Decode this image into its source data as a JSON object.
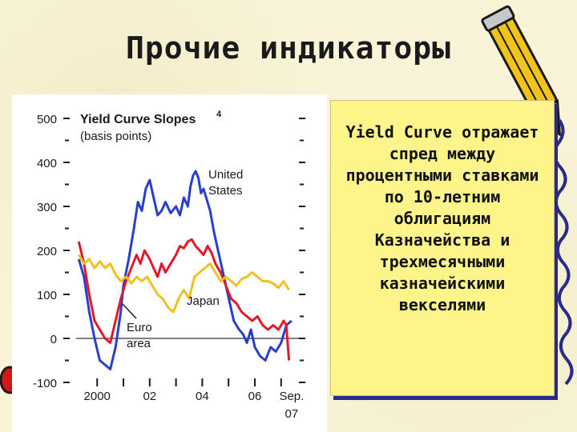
{
  "slide": {
    "title": "Прочие индикаторы",
    "note_text": "Yield Curve отражает спред между процентными ставками по 10-летним облигациям Казначейства и трехмесячными казначейскими векселями"
  },
  "colors": {
    "united_states": "#2a3fc8",
    "euro_area": "#e01a2a",
    "japan": "#f0c020",
    "note_bg": "#fdf58a"
  },
  "chart_data": {
    "type": "line",
    "title": "Yield Curve Slopes",
    "title_superscript": "4",
    "subtitle": "(basis points)",
    "ylim": [
      -100,
      500
    ],
    "y_ticks": [
      "500",
      "400",
      "300",
      "200",
      "100",
      "0",
      "-100"
    ],
    "x_ticks": [
      "2000",
      "02",
      "04",
      "06",
      "Sep.",
      "07"
    ],
    "xlim": [
      1999.2,
      2007.8
    ],
    "grid": false,
    "zero_line": true,
    "series": [
      {
        "name": "United States",
        "color": "#2a3fc8",
        "points": [
          [
            1999.3,
            180
          ],
          [
            1999.5,
            140
          ],
          [
            1999.7,
            60
          ],
          [
            1999.9,
            0
          ],
          [
            2000.1,
            -50
          ],
          [
            2000.3,
            -60
          ],
          [
            2000.5,
            -70
          ],
          [
            2000.7,
            -20
          ],
          [
            2000.9,
            60
          ],
          [
            2001.0,
            120
          ],
          [
            2001.2,
            180
          ],
          [
            2001.4,
            250
          ],
          [
            2001.55,
            310
          ],
          [
            2001.7,
            290
          ],
          [
            2001.85,
            340
          ],
          [
            2002.0,
            360
          ],
          [
            2002.15,
            320
          ],
          [
            2002.3,
            280
          ],
          [
            2002.45,
            290
          ],
          [
            2002.6,
            310
          ],
          [
            2002.8,
            285
          ],
          [
            2003.0,
            300
          ],
          [
            2003.15,
            280
          ],
          [
            2003.3,
            320
          ],
          [
            2003.45,
            300
          ],
          [
            2003.55,
            345
          ],
          [
            2003.65,
            370
          ],
          [
            2003.75,
            380
          ],
          [
            2003.85,
            365
          ],
          [
            2003.95,
            330
          ],
          [
            2004.05,
            340
          ],
          [
            2004.15,
            320
          ],
          [
            2004.3,
            290
          ],
          [
            2004.45,
            240
          ],
          [
            2004.6,
            200
          ],
          [
            2004.75,
            160
          ],
          [
            2004.9,
            120
          ],
          [
            2005.05,
            80
          ],
          [
            2005.2,
            40
          ],
          [
            2005.4,
            20
          ],
          [
            2005.55,
            10
          ],
          [
            2005.7,
            -10
          ],
          [
            2005.85,
            20
          ],
          [
            2006.0,
            -20
          ],
          [
            2006.2,
            -40
          ],
          [
            2006.4,
            -50
          ],
          [
            2006.6,
            -20
          ],
          [
            2006.8,
            -30
          ],
          [
            2007.0,
            -10
          ],
          [
            2007.2,
            30
          ],
          [
            2007.4,
            40
          ]
        ]
      },
      {
        "name": "Euro area",
        "color": "#e01a2a",
        "points": [
          [
            1999.3,
            220
          ],
          [
            1999.5,
            170
          ],
          [
            1999.7,
            100
          ],
          [
            1999.9,
            40
          ],
          [
            2000.1,
            20
          ],
          [
            2000.3,
            0
          ],
          [
            2000.5,
            -10
          ],
          [
            2000.7,
            40
          ],
          [
            2000.9,
            90
          ],
          [
            2001.1,
            130
          ],
          [
            2001.3,
            160
          ],
          [
            2001.5,
            190
          ],
          [
            2001.65,
            170
          ],
          [
            2001.8,
            200
          ],
          [
            2002.0,
            180
          ],
          [
            2002.15,
            160
          ],
          [
            2002.3,
            140
          ],
          [
            2002.45,
            170
          ],
          [
            2002.6,
            150
          ],
          [
            2002.8,
            170
          ],
          [
            2003.0,
            190
          ],
          [
            2003.15,
            210
          ],
          [
            2003.3,
            205
          ],
          [
            2003.45,
            220
          ],
          [
            2003.6,
            225
          ],
          [
            2003.75,
            210
          ],
          [
            2003.9,
            200
          ],
          [
            2004.05,
            190
          ],
          [
            2004.2,
            210
          ],
          [
            2004.35,
            195
          ],
          [
            2004.5,
            170
          ],
          [
            2004.7,
            150
          ],
          [
            2004.9,
            120
          ],
          [
            2005.1,
            90
          ],
          [
            2005.3,
            80
          ],
          [
            2005.5,
            60
          ],
          [
            2005.7,
            50
          ],
          [
            2005.9,
            40
          ],
          [
            2006.1,
            50
          ],
          [
            2006.3,
            30
          ],
          [
            2006.5,
            20
          ],
          [
            2006.7,
            30
          ],
          [
            2006.9,
            20
          ],
          [
            2007.1,
            40
          ],
          [
            2007.2,
            30
          ],
          [
            2007.3,
            -50
          ]
        ]
      },
      {
        "name": "Japan",
        "color": "#f0c020",
        "points": [
          [
            1999.3,
            190
          ],
          [
            1999.5,
            170
          ],
          [
            1999.7,
            180
          ],
          [
            1999.9,
            160
          ],
          [
            2000.1,
            175
          ],
          [
            2000.3,
            160
          ],
          [
            2000.5,
            170
          ],
          [
            2000.7,
            145
          ],
          [
            2000.9,
            130
          ],
          [
            2001.1,
            140
          ],
          [
            2001.3,
            125
          ],
          [
            2001.5,
            140
          ],
          [
            2001.7,
            130
          ],
          [
            2001.9,
            140
          ],
          [
            2002.1,
            120
          ],
          [
            2002.3,
            100
          ],
          [
            2002.5,
            90
          ],
          [
            2002.7,
            70
          ],
          [
            2002.9,
            60
          ],
          [
            2003.1,
            90
          ],
          [
            2003.3,
            110
          ],
          [
            2003.5,
            90
          ],
          [
            2003.7,
            140
          ],
          [
            2003.9,
            150
          ],
          [
            2004.1,
            160
          ],
          [
            2004.3,
            170
          ],
          [
            2004.5,
            150
          ],
          [
            2004.7,
            130
          ],
          [
            2004.9,
            140
          ],
          [
            2005.1,
            130
          ],
          [
            2005.3,
            120
          ],
          [
            2005.5,
            135
          ],
          [
            2005.7,
            140
          ],
          [
            2005.9,
            150
          ],
          [
            2006.1,
            140
          ],
          [
            2006.3,
            130
          ],
          [
            2006.5,
            130
          ],
          [
            2006.7,
            125
          ],
          [
            2006.9,
            115
          ],
          [
            2007.1,
            130
          ],
          [
            2007.3,
            110
          ]
        ]
      }
    ]
  }
}
